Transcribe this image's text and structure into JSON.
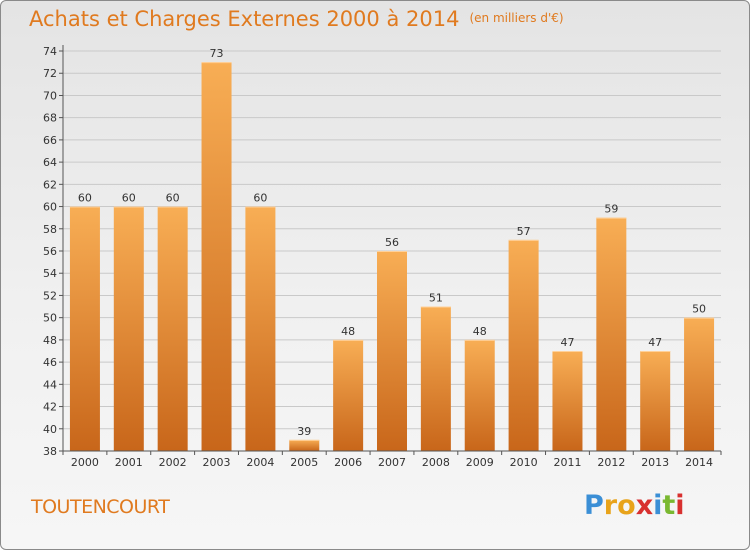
{
  "title": "Achats et Charges Externes 2000 à 2014",
  "unit": "(en milliers d'€)",
  "place": "TOUTENCOURT",
  "logo": {
    "letters": [
      "P",
      "r",
      "o",
      "x",
      "i",
      "t",
      "i"
    ],
    "colors": [
      "#3b8fd6",
      "#e8a31a",
      "#e8a31a",
      "#d8302f",
      "#3b8fd6",
      "#7ab831",
      "#d8302f"
    ]
  },
  "colors": {
    "accent": "#e07a1f",
    "bar_light": "#f6a84e",
    "bar_dark": "#c9671a"
  },
  "chart_data": {
    "type": "bar",
    "categories": [
      "2000",
      "2001",
      "2002",
      "2003",
      "2004",
      "2005",
      "2006",
      "2007",
      "2008",
      "2009",
      "2010",
      "2011",
      "2012",
      "2013",
      "2014"
    ],
    "values": [
      60,
      60,
      60,
      73,
      60,
      39,
      48,
      56,
      51,
      48,
      57,
      47,
      59,
      47,
      50
    ],
    "ylim": [
      38,
      74
    ],
    "yticks": [
      38,
      40,
      42,
      44,
      46,
      48,
      50,
      52,
      54,
      56,
      58,
      60,
      62,
      64,
      66,
      68,
      70,
      72,
      74
    ],
    "grid": true
  }
}
